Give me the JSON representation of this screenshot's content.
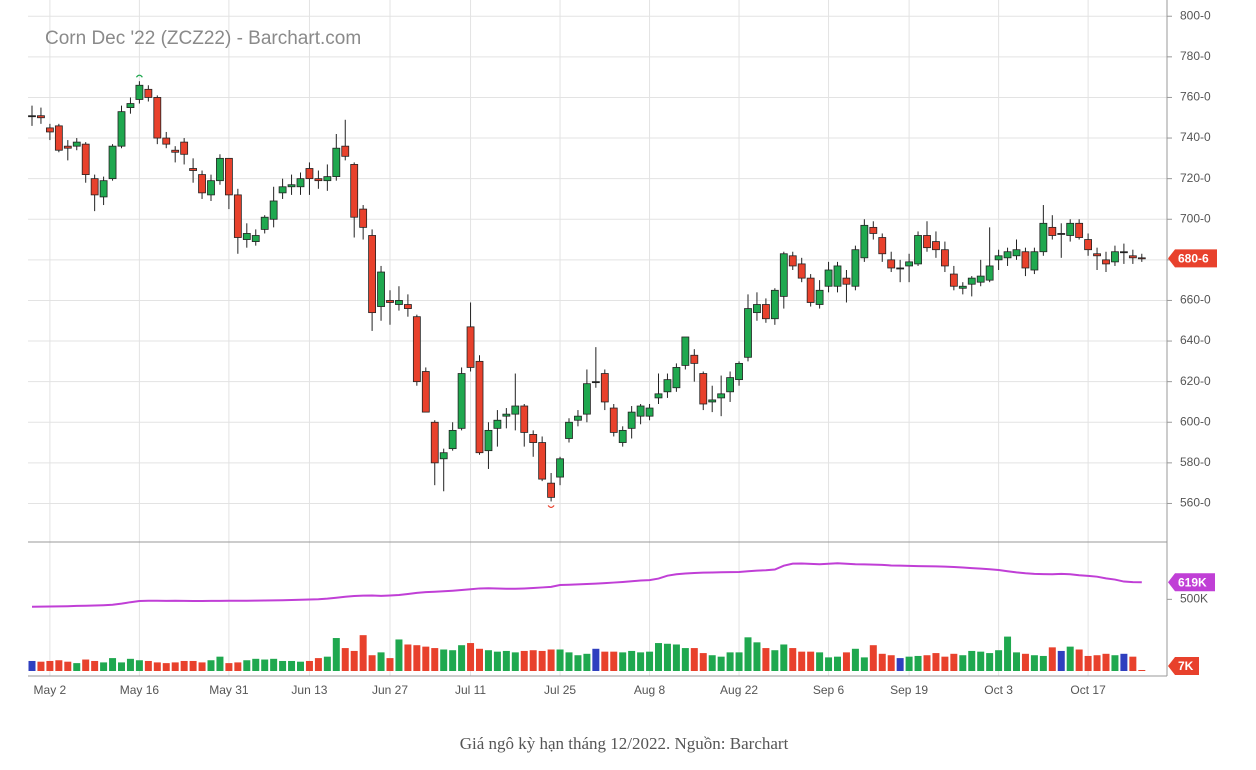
{
  "chart_data": {
    "type": "candlestick",
    "title": "Corn Dec '22 (ZCZ22) - Barchart.com",
    "caption": "Giá ngô kỳ hạn tháng 12/2022. Nguồn: Barchart",
    "categories": [
      null,
      null,
      "May 2",
      null,
      null,
      null,
      null,
      null,
      null,
      null,
      null,
      null,
      "May 16",
      null,
      null,
      null,
      null,
      null,
      null,
      null,
      null,
      null,
      "May 31",
      null,
      null,
      null,
      null,
      null,
      null,
      null,
      null,
      "Jun 13",
      null,
      null,
      null,
      null,
      null,
      null,
      null,
      null,
      "Jun 27",
      null,
      null,
      null,
      null,
      null,
      null,
      null,
      null,
      "Jul 11",
      null,
      null,
      null,
      null,
      null,
      null,
      null,
      null,
      null,
      "Jul 25",
      null,
      null,
      null,
      null,
      null,
      null,
      null,
      null,
      null,
      "Aug 8",
      null,
      null,
      null,
      null,
      null,
      null,
      null,
      null,
      null,
      "Aug 22",
      null,
      null,
      null,
      null,
      null,
      null,
      null,
      null,
      null,
      "Sep 6",
      null,
      null,
      null,
      null,
      null,
      null,
      null,
      null,
      "Sep 19",
      null,
      null,
      null,
      null,
      null,
      null,
      null,
      null,
      null,
      "Oct 3",
      null,
      null,
      null,
      null,
      null,
      null,
      null,
      null,
      null,
      "Oct 17",
      null,
      null,
      null,
      null,
      null,
      null
    ],
    "open": [
      751,
      751,
      745,
      746,
      736,
      736,
      737,
      720,
      711,
      720,
      736,
      755,
      759,
      764,
      760,
      740,
      734,
      738,
      725,
      722,
      712,
      719,
      730,
      712,
      690,
      689,
      695,
      700,
      713,
      716,
      716,
      725,
      720,
      719,
      721,
      736,
      727,
      705,
      692,
      657,
      660,
      658,
      658,
      652,
      625,
      600,
      582,
      587,
      597,
      647,
      630,
      586,
      597,
      603,
      604,
      608,
      594,
      590,
      570,
      573,
      592,
      601,
      604,
      620,
      624,
      607,
      590,
      597,
      603,
      603,
      612,
      615,
      617,
      628,
      633,
      624,
      610,
      612,
      615,
      621,
      632,
      654,
      658,
      651,
      662,
      682,
      678,
      671,
      658,
      667,
      667,
      671,
      667,
      681,
      696,
      691,
      680,
      676,
      677,
      678,
      692,
      689,
      685,
      673,
      666,
      668,
      669,
      670,
      680,
      681,
      682,
      684,
      675,
      684,
      696,
      693,
      692,
      698,
      690,
      683,
      680,
      679,
      684,
      682,
      681
    ],
    "high": [
      756,
      755,
      747,
      747,
      739,
      740,
      738,
      722,
      721,
      737,
      756,
      760,
      768,
      766,
      761,
      743,
      736,
      740,
      730,
      724,
      722,
      732,
      730,
      715,
      698,
      695,
      702,
      716,
      720,
      722,
      723,
      728,
      724,
      727,
      742,
      749,
      728,
      707,
      695,
      677,
      665,
      667,
      663,
      653,
      627,
      601,
      587,
      600,
      627,
      659,
      633,
      600,
      606,
      607,
      624,
      609,
      596,
      593,
      575,
      583,
      602,
      606,
      626,
      637,
      626,
      609,
      598,
      608,
      609,
      609,
      624,
      624,
      629,
      642,
      636,
      625,
      618,
      623,
      625,
      630,
      663,
      664,
      661,
      666,
      684,
      684,
      681,
      673,
      670,
      679,
      679,
      675,
      687,
      700,
      699,
      693,
      684,
      680,
      683,
      694,
      699,
      694,
      689,
      677,
      669,
      672,
      680,
      696,
      685,
      686,
      690,
      686,
      686,
      707,
      702,
      698,
      700,
      700,
      693,
      686,
      684,
      687,
      688,
      685,
      683
    ],
    "low": [
      746,
      747,
      739,
      733,
      729,
      734,
      718,
      704,
      707,
      719,
      735,
      752,
      757,
      758,
      737,
      735,
      728,
      727,
      718,
      710,
      709,
      717,
      705,
      683,
      686,
      687,
      693,
      696,
      710,
      712,
      712,
      712,
      715,
      714,
      719,
      729,
      691,
      690,
      645,
      650,
      648,
      655,
      652,
      618,
      605,
      569,
      566,
      586,
      596,
      625,
      584,
      577,
      588,
      597,
      596,
      588,
      583,
      571,
      561,
      569,
      590,
      598,
      600,
      617,
      606,
      593,
      588,
      592,
      599,
      601,
      609,
      612,
      615,
      626,
      620,
      606,
      605,
      603,
      610,
      618,
      630,
      650,
      649,
      648,
      656,
      675,
      669,
      657,
      656,
      664,
      664,
      659,
      665,
      679,
      690,
      679,
      674,
      669,
      669,
      677,
      684,
      681,
      674,
      665,
      663,
      662,
      667,
      669,
      675,
      677,
      680,
      672,
      673,
      682,
      690,
      681,
      689,
      690,
      682,
      675,
      674,
      677,
      678,
      678,
      679
    ],
    "close": [
      751,
      750,
      743,
      734,
      735,
      738,
      722,
      712,
      719,
      736,
      753,
      757,
      766,
      760,
      740,
      737,
      733,
      732,
      724,
      713,
      719,
      730,
      712,
      691,
      693,
      692,
      701,
      709,
      716,
      717,
      720,
      720,
      719,
      721,
      735,
      731,
      701,
      696,
      654,
      674,
      659,
      660,
      656,
      620,
      605,
      580,
      585,
      596,
      624,
      627,
      585,
      596,
      601,
      604,
      608,
      595,
      590,
      572,
      563,
      582,
      600,
      603,
      619,
      620,
      610,
      595,
      596,
      605,
      608,
      607,
      614,
      621,
      627,
      642,
      629,
      609,
      611,
      614,
      622,
      629,
      656,
      658,
      651,
      665,
      683,
      677,
      671,
      659,
      665,
      675,
      677,
      668,
      685,
      697,
      693,
      683,
      676,
      676,
      679,
      692,
      686,
      685,
      677,
      667,
      667,
      671,
      672,
      677,
      682,
      684,
      685,
      676,
      684,
      698,
      692,
      693,
      698,
      691,
      685,
      682,
      678,
      684,
      684,
      681,
      680.75
    ],
    "volume": [
      70,
      65,
      70,
      75,
      65,
      55,
      80,
      70,
      60,
      90,
      60,
      85,
      75,
      70,
      60,
      55,
      60,
      70,
      70,
      60,
      75,
      100,
      55,
      60,
      75,
      85,
      80,
      85,
      70,
      70,
      65,
      70,
      90,
      100,
      230,
      160,
      140,
      250,
      110,
      130,
      90,
      220,
      185,
      180,
      170,
      160,
      150,
      145,
      180,
      195,
      155,
      145,
      135,
      140,
      130,
      140,
      145,
      140,
      150,
      150,
      130,
      110,
      120,
      155,
      135,
      135,
      130,
      140,
      130,
      135,
      195,
      190,
      185,
      160,
      160,
      125,
      110,
      100,
      130,
      130,
      235,
      200,
      160,
      145,
      185,
      160,
      135,
      135,
      130,
      95,
      100,
      130,
      155,
      95,
      180,
      120,
      110,
      90,
      100,
      105,
      110,
      125,
      100,
      120,
      110,
      140,
      135,
      125,
      145,
      240,
      130,
      120,
      110,
      105,
      165,
      140,
      170,
      150,
      105,
      110,
      120,
      110,
      120,
      100,
      7
    ],
    "open_interest": [
      448,
      449,
      450,
      451,
      452,
      454,
      455,
      457,
      459,
      462,
      470,
      480,
      488,
      490,
      490,
      489,
      490,
      489,
      488,
      488,
      489,
      489,
      490,
      490,
      490,
      491,
      492,
      493,
      494,
      495,
      497,
      499,
      501,
      505,
      511,
      518,
      523,
      526,
      527,
      524,
      527,
      530,
      537,
      545,
      550,
      553,
      556,
      560,
      565,
      570,
      576,
      577,
      576,
      574,
      574,
      576,
      579,
      583,
      587,
      600,
      602,
      604,
      607,
      610,
      613,
      617,
      621,
      626,
      631,
      634,
      645,
      665,
      675,
      680,
      684,
      686,
      687,
      689,
      690,
      691,
      696,
      700,
      703,
      708,
      735,
      749,
      750,
      747,
      745,
      748,
      752,
      748,
      745,
      744,
      742,
      740,
      736,
      735,
      733,
      732,
      731,
      730,
      728,
      726,
      722,
      718,
      714,
      710,
      705,
      696,
      688,
      682,
      678,
      676,
      675,
      678,
      675,
      668,
      664,
      658,
      646,
      638,
      624,
      620,
      619
    ],
    "up_color": "#1fa84f",
    "down_color": "#e8412c",
    "flat_color": "#222222",
    "flat_volume_color": "#2f3fbf",
    "oi_color": "#c03fd6",
    "ylim": [
      542,
      808
    ],
    "yticks": [
      {
        "value": 560,
        "label": "560-0"
      },
      {
        "value": 580,
        "label": "580-0"
      },
      {
        "value": 600,
        "label": "600-0"
      },
      {
        "value": 620,
        "label": "620-0"
      },
      {
        "value": 640,
        "label": "640-0"
      },
      {
        "value": 660,
        "label": "660-0"
      },
      {
        "value": 680,
        "label": "680-0"
      },
      {
        "value": 700,
        "label": "700-0"
      },
      {
        "value": 720,
        "label": "720-0"
      },
      {
        "value": 740,
        "label": "740-0"
      },
      {
        "value": 760,
        "label": "760-0"
      },
      {
        "value": 780,
        "label": "780-0"
      },
      {
        "value": 800,
        "label": "800-0"
      }
    ],
    "y2lim": [
      0,
      900
    ],
    "y2ticks": [
      {
        "value": 500,
        "label": "500K"
      }
    ],
    "last_price": {
      "value": 680.75,
      "label": "680-6"
    },
    "last_open_interest": {
      "value": 619,
      "label": "619K"
    },
    "last_volume": {
      "value": 7,
      "label": "7K"
    },
    "grid": true
  }
}
